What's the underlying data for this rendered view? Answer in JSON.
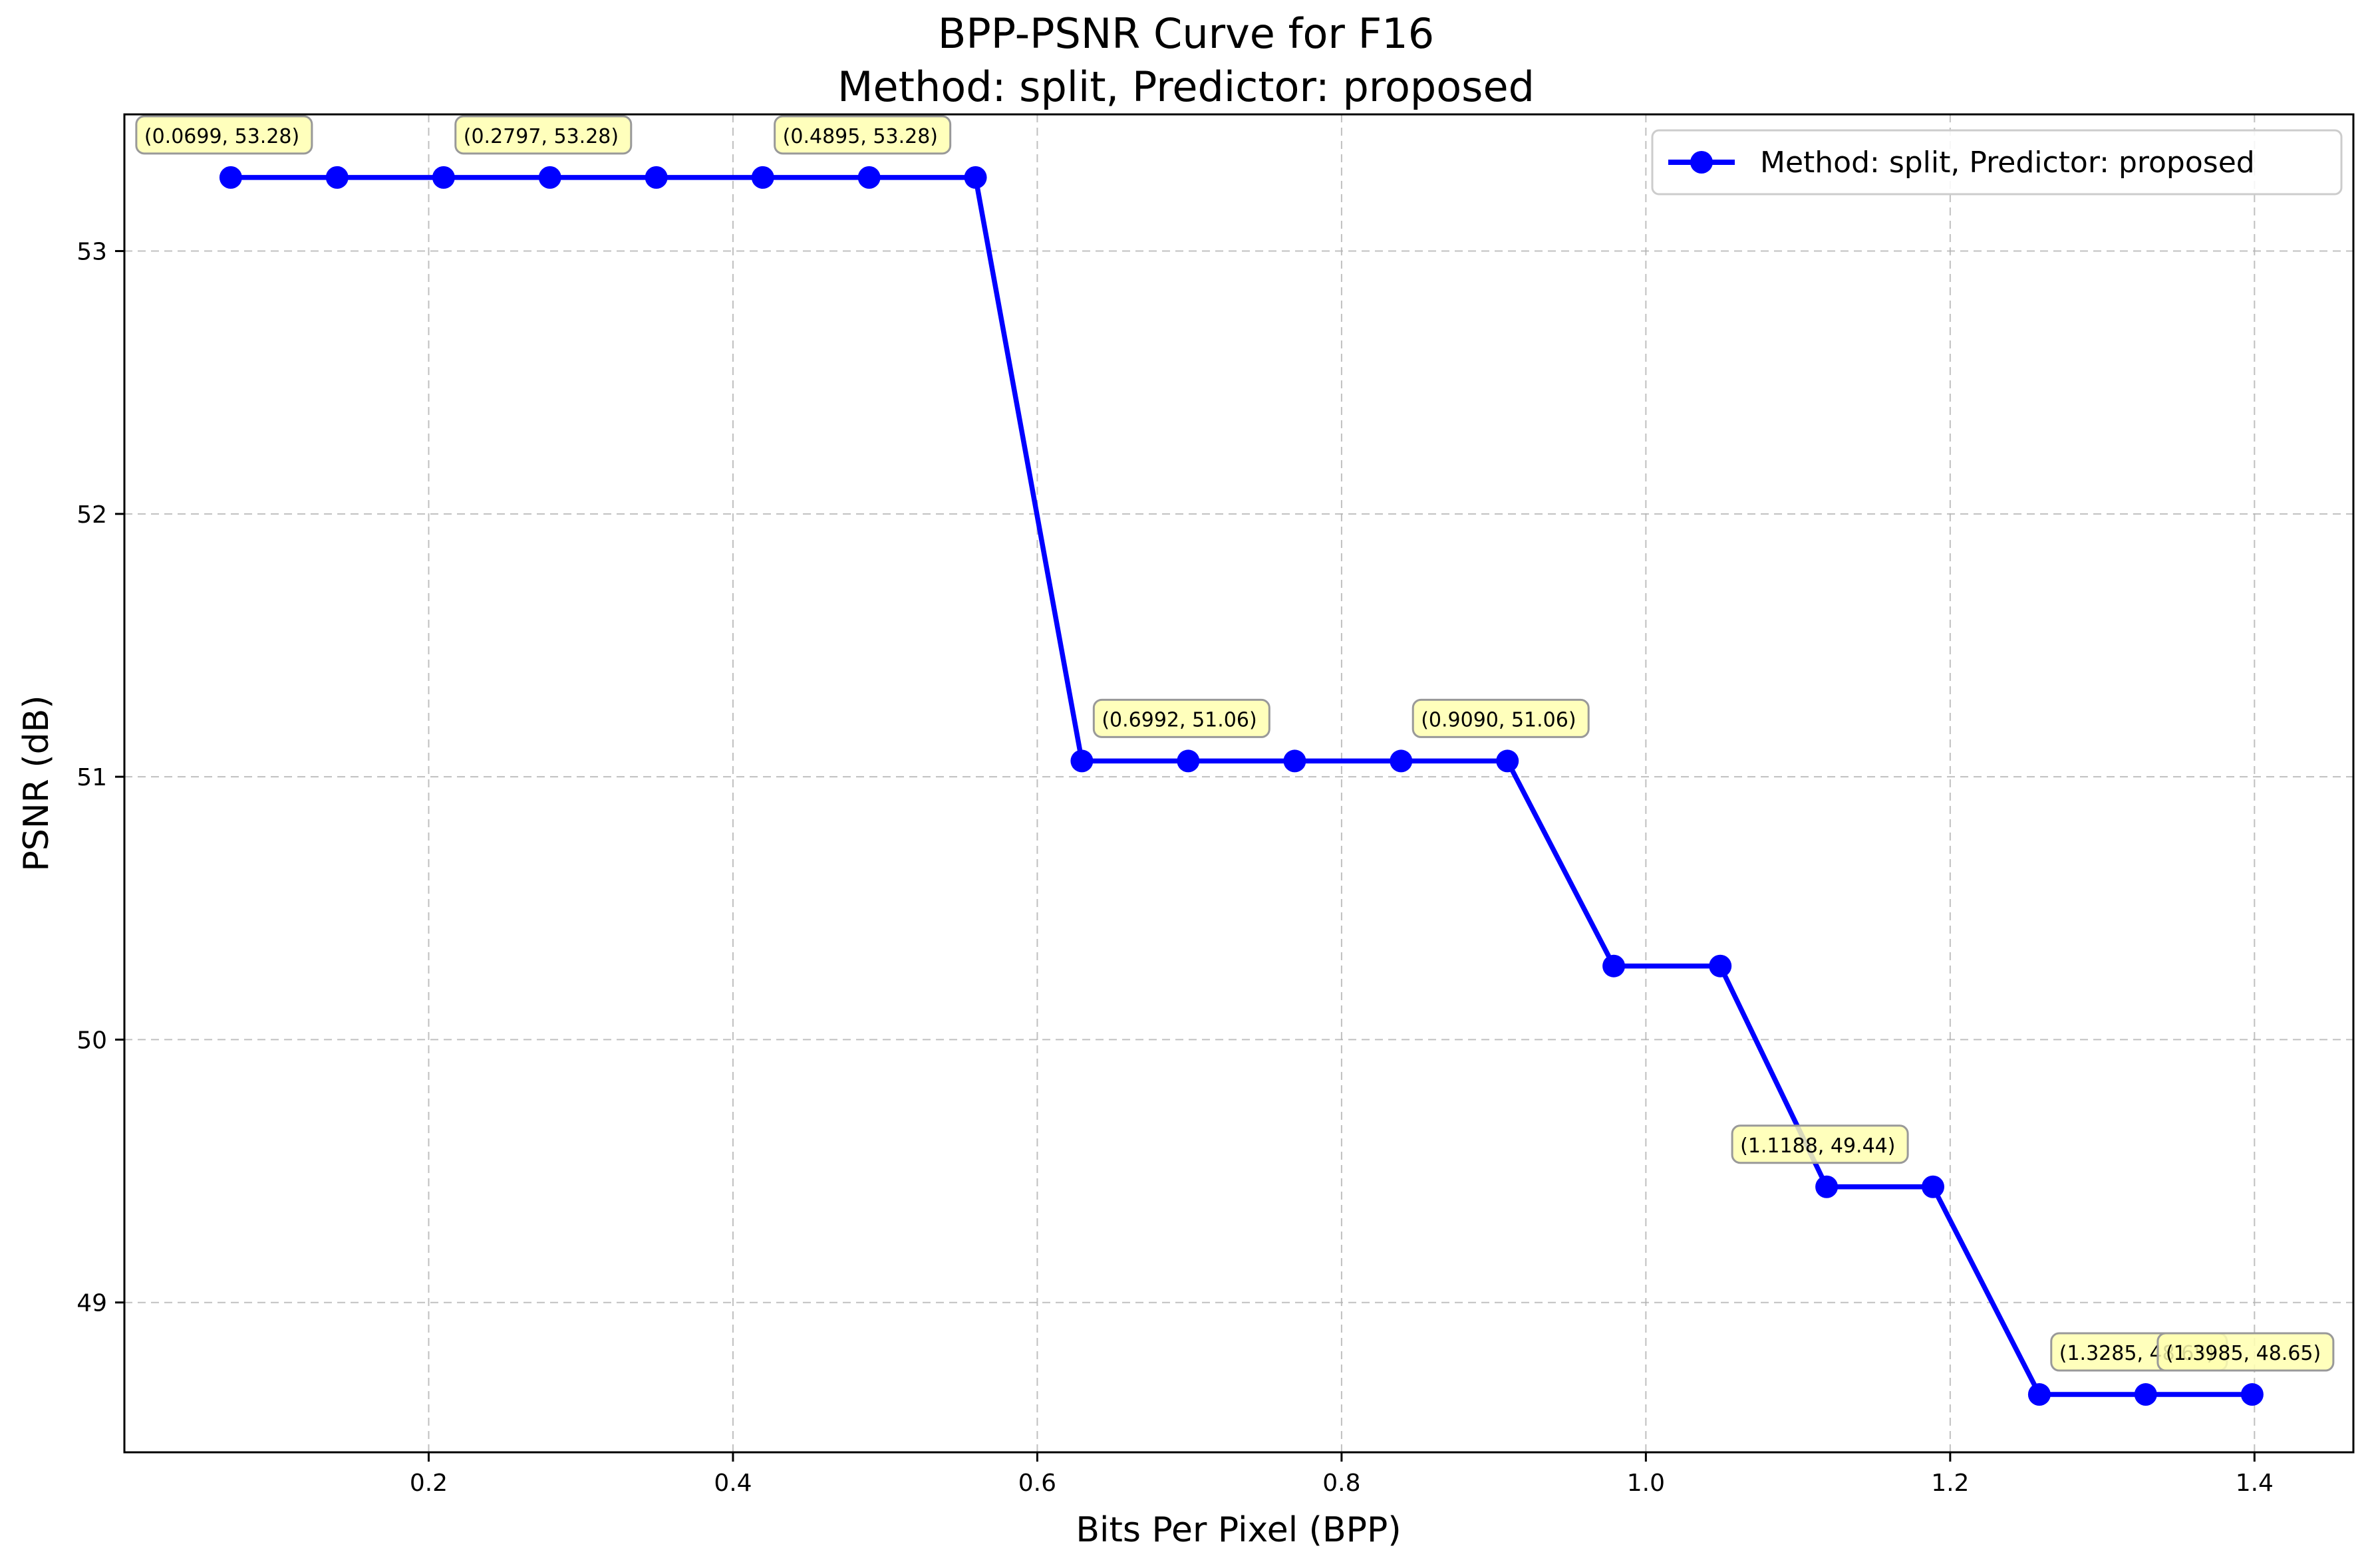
{
  "chart_data": {
    "type": "line",
    "title": "BPP-PSNR Curve for F16",
    "subtitle": "Method: split, Predictor: proposed",
    "xlabel": "Bits Per Pixel (BPP)",
    "ylabel": "PSNR (dB)",
    "xlim": [
      0.0,
      1.465
    ],
    "ylim": [
      48.43,
      53.52
    ],
    "xticks": [
      0.2,
      0.4,
      0.6,
      0.8,
      1.0,
      1.2,
      1.4
    ],
    "xtick_labels": [
      "0.2",
      "0.4",
      "0.6",
      "0.8",
      "1.0",
      "1.2",
      "1.4"
    ],
    "yticks": [
      49,
      50,
      51,
      52,
      53
    ],
    "ytick_labels": [
      "49",
      "50",
      "51",
      "52",
      "53"
    ],
    "grid": true,
    "legend_position": "top-right",
    "colors": {
      "series": "#0000ff",
      "annotation_fill": "#ffffb0",
      "annotation_border": "#999999",
      "grid": "#b0b0b0"
    },
    "series": [
      {
        "name": "Method: split, Predictor: proposed",
        "x": [
          0.0699,
          0.1398,
          0.2098,
          0.2797,
          0.3496,
          0.4196,
          0.4895,
          0.5594,
          0.6293,
          0.6992,
          0.7692,
          0.8391,
          0.909,
          0.9789,
          1.0489,
          1.1188,
          1.1887,
          1.2586,
          1.3285,
          1.3985
        ],
        "y": [
          53.28,
          53.28,
          53.28,
          53.28,
          53.28,
          53.28,
          53.28,
          53.28,
          51.06,
          51.06,
          51.06,
          51.06,
          51.06,
          50.28,
          50.28,
          49.44,
          49.44,
          48.65,
          48.65,
          48.65
        ]
      }
    ],
    "annotations": [
      {
        "x": 0.0699,
        "y": 53.28,
        "text": "(0.0699, 53.28)"
      },
      {
        "x": 0.2797,
        "y": 53.28,
        "text": "(0.2797, 53.28)"
      },
      {
        "x": 0.4895,
        "y": 53.28,
        "text": "(0.4895, 53.28)"
      },
      {
        "x": 0.6992,
        "y": 51.06,
        "text": "(0.6992, 51.06)"
      },
      {
        "x": 0.909,
        "y": 51.06,
        "text": "(0.9090, 51.06)"
      },
      {
        "x": 1.1188,
        "y": 49.44,
        "text": "(1.1188, 49.44)"
      },
      {
        "x": 1.3285,
        "y": 48.65,
        "text": "(1.3285, 48.65)"
      },
      {
        "x": 1.3985,
        "y": 48.65,
        "text": "(1.3985, 48.65)"
      }
    ]
  }
}
